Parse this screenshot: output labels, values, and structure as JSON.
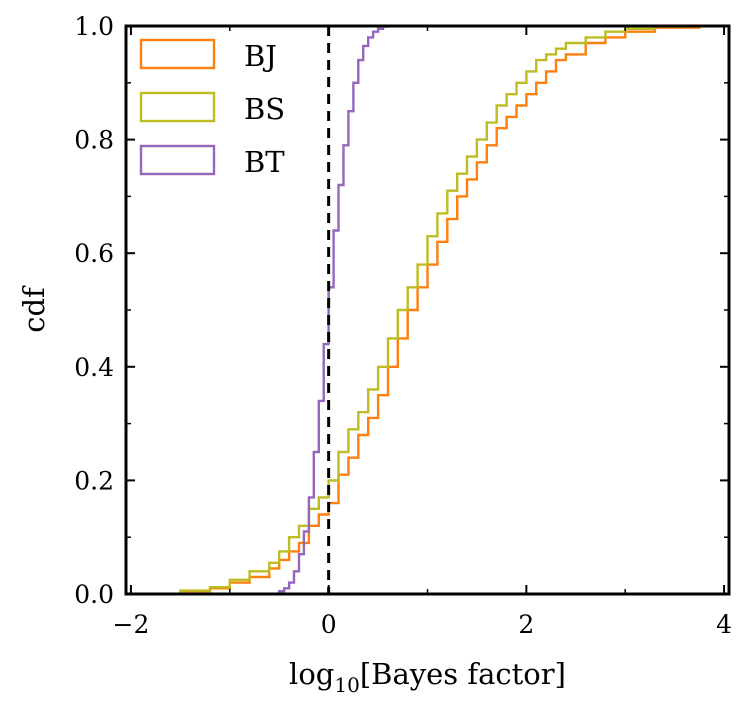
{
  "chart_data": {
    "type": "step",
    "title": "",
    "xlabel_prefix": "log",
    "xlabel_sub": "10",
    "xlabel_suffix": "[Bayes factor]",
    "ylabel": "cdf",
    "xlim": [
      -2.05,
      4.05
    ],
    "ylim": [
      0.0,
      1.0
    ],
    "xticks": [
      -2,
      0,
      2,
      4
    ],
    "xtick_labels": [
      "−2",
      "0",
      "2",
      "4"
    ],
    "yticks": [
      0.0,
      0.2,
      0.4,
      0.6,
      0.8,
      1.0
    ],
    "ytick_labels": [
      "0.0",
      "0.2",
      "0.4",
      "0.6",
      "0.8",
      "1.0"
    ],
    "grid": false,
    "legend_position": "top-left",
    "reference_line": {
      "x": 0,
      "style": "dashed",
      "color": "#000000"
    },
    "series": [
      {
        "name": "BJ",
        "color": "#ff7f0e",
        "x": [
          -1.75,
          -1.5,
          -1.2,
          -1.0,
          -0.8,
          -0.6,
          -0.5,
          -0.4,
          -0.3,
          -0.2,
          -0.1,
          0.0,
          0.1,
          0.2,
          0.3,
          0.4,
          0.5,
          0.6,
          0.7,
          0.8,
          0.9,
          1.0,
          1.1,
          1.2,
          1.3,
          1.4,
          1.5,
          1.6,
          1.7,
          1.8,
          1.9,
          2.0,
          2.1,
          2.2,
          2.3,
          2.4,
          2.6,
          2.8,
          3.0,
          3.3,
          3.75
        ],
        "y": [
          0.0,
          0.005,
          0.01,
          0.02,
          0.03,
          0.045,
          0.06,
          0.075,
          0.09,
          0.12,
          0.14,
          0.16,
          0.21,
          0.24,
          0.28,
          0.31,
          0.35,
          0.4,
          0.45,
          0.5,
          0.54,
          0.58,
          0.62,
          0.66,
          0.7,
          0.73,
          0.76,
          0.79,
          0.82,
          0.84,
          0.86,
          0.88,
          0.9,
          0.92,
          0.94,
          0.95,
          0.97,
          0.98,
          0.99,
          0.997,
          1.0
        ]
      },
      {
        "name": "BS",
        "color": "#bcbd22",
        "x": [
          -1.75,
          -1.5,
          -1.2,
          -1.0,
          -0.8,
          -0.6,
          -0.5,
          -0.4,
          -0.3,
          -0.2,
          -0.1,
          0.0,
          0.1,
          0.2,
          0.3,
          0.4,
          0.5,
          0.6,
          0.7,
          0.8,
          0.9,
          1.0,
          1.1,
          1.2,
          1.3,
          1.4,
          1.5,
          1.6,
          1.7,
          1.8,
          1.9,
          2.0,
          2.1,
          2.2,
          2.3,
          2.4,
          2.6,
          2.8,
          3.0,
          3.3,
          3.75
        ],
        "y": [
          0.0,
          0.006,
          0.012,
          0.025,
          0.04,
          0.055,
          0.075,
          0.1,
          0.12,
          0.15,
          0.17,
          0.2,
          0.25,
          0.29,
          0.32,
          0.36,
          0.4,
          0.45,
          0.5,
          0.54,
          0.58,
          0.63,
          0.67,
          0.71,
          0.74,
          0.77,
          0.8,
          0.83,
          0.86,
          0.88,
          0.9,
          0.92,
          0.94,
          0.95,
          0.96,
          0.97,
          0.98,
          0.99,
          0.995,
          0.999,
          1.0
        ]
      },
      {
        "name": "BT",
        "color": "#9467bd",
        "x": [
          -0.6,
          -0.5,
          -0.45,
          -0.4,
          -0.35,
          -0.3,
          -0.25,
          -0.2,
          -0.15,
          -0.1,
          -0.05,
          0.0,
          0.05,
          0.1,
          0.15,
          0.2,
          0.25,
          0.3,
          0.35,
          0.4,
          0.45,
          0.5,
          0.55,
          0.6
        ],
        "y": [
          0.0,
          0.005,
          0.01,
          0.02,
          0.04,
          0.07,
          0.11,
          0.17,
          0.25,
          0.34,
          0.44,
          0.54,
          0.64,
          0.72,
          0.79,
          0.85,
          0.9,
          0.94,
          0.965,
          0.98,
          0.99,
          0.995,
          0.999,
          1.0
        ]
      }
    ]
  }
}
